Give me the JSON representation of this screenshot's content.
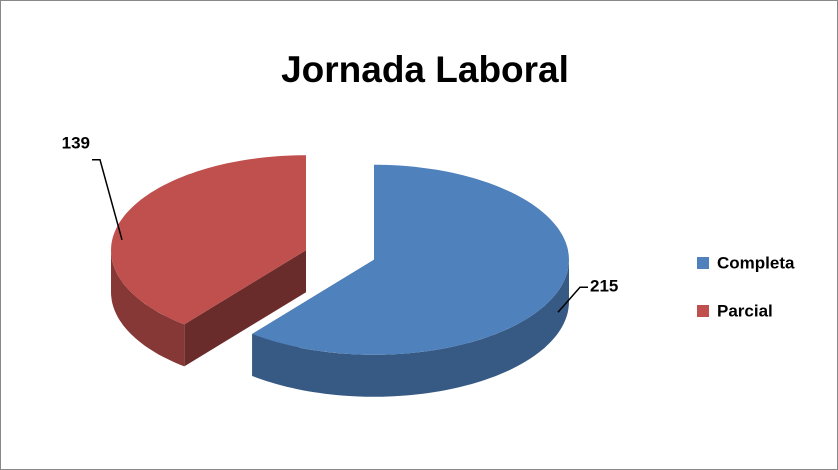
{
  "chart_data": {
    "type": "pie",
    "title": "Jornada Laboral",
    "categories": [
      "Completa",
      "Parcial"
    ],
    "values": [
      215,
      139
    ],
    "colors": [
      "#4F81BD",
      "#C0504D"
    ],
    "legend": "right"
  }
}
